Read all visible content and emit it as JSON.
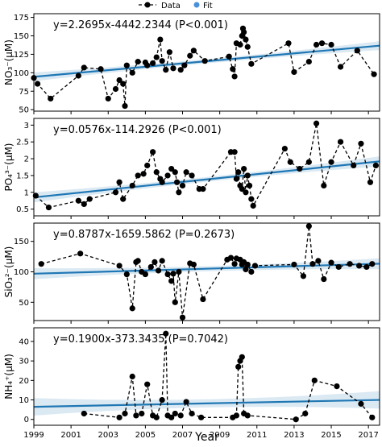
{
  "legend": {
    "data_label": "Data",
    "fit_label": "Fit",
    "fit_color": "#4a90d9"
  },
  "xlabel": "Year",
  "chart_data": [
    {
      "type": "scatter",
      "id": "no3",
      "ylabel": "NO₃⁻(μM)",
      "equation": "y=2.2695x-4442.2344 (P<0.001)",
      "xlim": [
        1999,
        2017.6
      ],
      "ylim": [
        48,
        180
      ],
      "yticks": [
        50,
        75,
        100,
        125,
        150,
        175
      ],
      "fit": {
        "slope": 2.2695,
        "intercept": -4442.2344,
        "band": 8
      },
      "x": [
        1999.0,
        1999.2,
        1999.9,
        2001.4,
        2001.7,
        2002.6,
        2003.0,
        2003.4,
        2003.6,
        2003.8,
        2003.9,
        2004.0,
        2004.3,
        2004.6,
        2005.0,
        2005.1,
        2005.4,
        2005.6,
        2005.8,
        2005.9,
        2006.1,
        2006.3,
        2006.5,
        2006.9,
        2007.1,
        2007.4,
        2007.6,
        2008.2,
        2009.5,
        2009.7,
        2009.8,
        2009.9,
        2010.1,
        2010.2,
        2010.25,
        2010.3,
        2010.4,
        2010.5,
        2010.7,
        2012.7,
        2013.0,
        2013.8,
        2014.2,
        2014.5,
        2015.0,
        2015.5,
        2016.4,
        2017.3
      ],
      "y": [
        93,
        85,
        65,
        96,
        107,
        105,
        65,
        78,
        90,
        85,
        55,
        110,
        100,
        115,
        114,
        110,
        113,
        121,
        145,
        116,
        104,
        128,
        106,
        104,
        110,
        123,
        130,
        116,
        122,
        105,
        95,
        140,
        138,
        150,
        160,
        155,
        145,
        135,
        112,
        140,
        101,
        115,
        138,
        140,
        138,
        108,
        130,
        98
      ]
    },
    {
      "type": "scatter",
      "id": "po4",
      "ylabel": "PO₄³⁻(μM)",
      "equation": "y=0.0576x-114.2926 (P<0.001)",
      "xlim": [
        1999,
        2017.6
      ],
      "ylim": [
        0.3,
        3.2
      ],
      "yticks": [
        0.5,
        1.0,
        1.5,
        2.0,
        2.5,
        3.0
      ],
      "fit": {
        "slope": 0.0576,
        "intercept": -114.2926,
        "band": 0.2
      },
      "x": [
        1999.1,
        1999.8,
        2001.4,
        2001.7,
        2002.0,
        2003.4,
        2003.6,
        2003.8,
        2004.3,
        2004.6,
        2004.9,
        2005.1,
        2005.4,
        2005.6,
        2005.8,
        2005.9,
        2006.2,
        2006.4,
        2006.6,
        2006.7,
        2006.8,
        2007.0,
        2007.2,
        2007.5,
        2007.9,
        2008.1,
        2009.6,
        2009.8,
        2009.9,
        2010.0,
        2010.1,
        2010.2,
        2010.3,
        2010.4,
        2010.5,
        2010.6,
        2010.7,
        2010.8,
        2012.5,
        2012.8,
        2013.3,
        2013.8,
        2014.2,
        2014.6,
        2015.0,
        2015.5,
        2016.2,
        2016.6,
        2017.1,
        2017.4
      ],
      "y": [
        0.9,
        0.55,
        0.75,
        0.65,
        0.8,
        1.0,
        1.3,
        0.8,
        1.2,
        1.5,
        1.55,
        1.8,
        2.2,
        1.6,
        1.4,
        1.3,
        1.5,
        1.7,
        1.6,
        1.3,
        1.0,
        1.2,
        1.6,
        1.5,
        1.1,
        1.1,
        2.2,
        2.2,
        1.4,
        1.6,
        1.2,
        1.1,
        1.7,
        1.0,
        1.5,
        1.2,
        0.8,
        0.6,
        2.3,
        1.9,
        1.7,
        1.9,
        3.05,
        1.2,
        1.9,
        2.5,
        1.8,
        2.45,
        1.3,
        1.8
      ]
    },
    {
      "type": "scatter",
      "id": "sio3",
      "ylabel": "SiO₃²⁻(μM)",
      "equation": "y=0.8787x-1659.5862 (P=0.2673)",
      "xlim": [
        1999,
        2017.6
      ],
      "ylim": [
        20,
        180
      ],
      "yticks": [
        50,
        100,
        150
      ],
      "fit": {
        "slope": 0.8787,
        "intercept": -1659.5862,
        "band": 12
      },
      "x": [
        1999.4,
        2001.5,
        2003.6,
        2004.0,
        2004.3,
        2004.5,
        2004.6,
        2004.8,
        2005.0,
        2005.3,
        2005.5,
        2005.7,
        2005.9,
        2006.2,
        2006.4,
        2006.5,
        2006.6,
        2006.8,
        2007.0,
        2007.4,
        2007.6,
        2008.1,
        2009.4,
        2009.6,
        2009.8,
        2009.9,
        2010.1,
        2010.2,
        2010.3,
        2010.4,
        2010.5,
        2010.7,
        2010.9,
        2013.0,
        2013.5,
        2013.8,
        2014.0,
        2014.3,
        2014.6,
        2015.0,
        2015.4,
        2016.0,
        2016.5,
        2016.9,
        2017.2
      ],
      "y": [
        113,
        130,
        110,
        96,
        40,
        116,
        118,
        100,
        96,
        108,
        116,
        102,
        118,
        96,
        85,
        97,
        50,
        100,
        25,
        114,
        112,
        55,
        120,
        123,
        113,
        122,
        120,
        112,
        116,
        104,
        112,
        100,
        110,
        112,
        93,
        175,
        113,
        118,
        88,
        115,
        108,
        113,
        110,
        108,
        113
      ]
    },
    {
      "type": "scatter",
      "id": "nh4",
      "ylabel": "NH₄⁺(μM)",
      "equation": "y=0.1900x-373.3435 (P=0.7042)",
      "xlim": [
        1999,
        2017.6
      ],
      "ylim": [
        -3,
        47
      ],
      "yticks": [
        0,
        10,
        20,
        30,
        40
      ],
      "fit": {
        "slope": 0.19,
        "intercept": -373.3435,
        "band": 6
      },
      "x": [
        2001.7,
        2003.6,
        2003.9,
        2004.3,
        2004.5,
        2004.8,
        2005.1,
        2005.4,
        2005.6,
        2005.9,
        2006.1,
        2006.2,
        2006.4,
        2006.6,
        2006.9,
        2007.2,
        2007.5,
        2008.0,
        2009.7,
        2009.9,
        2010.0,
        2010.1,
        2010.2,
        2010.3,
        2010.5,
        2013.1,
        2013.6,
        2014.1,
        2015.3,
        2016.6,
        2017.2
      ],
      "y": [
        3,
        1,
        3,
        22,
        2,
        3,
        18,
        2,
        1,
        10,
        44,
        2,
        1,
        3,
        2,
        9,
        3,
        1,
        1,
        2,
        27,
        30,
        32,
        3,
        2,
        0,
        3,
        20,
        17,
        8,
        1
      ]
    }
  ],
  "xticks": [
    1999,
    2001,
    2003,
    2005,
    2007,
    2009,
    2011,
    2013,
    2015,
    2017
  ]
}
